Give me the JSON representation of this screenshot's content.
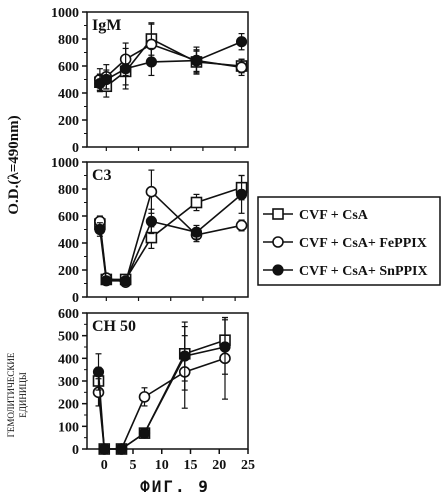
{
  "y_axis_label": "O.D.(λ=490nm)",
  "secondary_y_label_line1": "ГЕМОЛИТИЧЕСКИЕ",
  "secondary_y_label_line2": "ЕДИНИЦЫ",
  "caption": "ФИГ. 9",
  "legend": [
    {
      "label": "CVF + CsA",
      "marker": "open-square"
    },
    {
      "label": "CVF + CsA+ FePPIX",
      "marker": "open-circle"
    },
    {
      "label": "CVF + CsA+ SnPPIX",
      "marker": "filled-circle"
    }
  ],
  "chart_data": [
    {
      "type": "line",
      "title": "IgM",
      "ylim": [
        0,
        1000
      ],
      "yticks": [
        0,
        200,
        400,
        600,
        800,
        1000
      ],
      "xlim": [
        -3,
        22
      ],
      "series": [
        {
          "name": "CVF + CsA",
          "marker": "open-square",
          "x": [
            -1,
            0,
            3,
            7,
            14,
            21
          ],
          "y": [
            480,
            450,
            560,
            800,
            630,
            600
          ],
          "err": [
            60,
            80,
            100,
            120,
            80,
            50
          ]
        },
        {
          "name": "CVF + CsA+ FePPIX",
          "marker": "open-circle",
          "x": [
            -1,
            0,
            3,
            7,
            14,
            21
          ],
          "y": [
            500,
            520,
            650,
            760,
            640,
            590
          ],
          "err": [
            80,
            90,
            120,
            150,
            100,
            60
          ]
        },
        {
          "name": "CVF + CsA+ SnPPIX",
          "marker": "filled-circle",
          "x": [
            -1,
            0,
            3,
            7,
            14,
            21
          ],
          "y": [
            470,
            500,
            580,
            630,
            640,
            780
          ],
          "err": [
            60,
            70,
            150,
            100,
            80,
            60
          ]
        }
      ]
    },
    {
      "type": "line",
      "title": "C3",
      "ylim": [
        0,
        1000
      ],
      "yticks": [
        0,
        200,
        400,
        600,
        800,
        1000
      ],
      "xlim": [
        -3,
        22
      ],
      "series": [
        {
          "name": "CVF + CsA",
          "marker": "open-square",
          "x": [
            -1,
            0,
            3,
            7,
            14,
            21
          ],
          "y": [
            540,
            130,
            130,
            440,
            700,
            810
          ],
          "err": [
            40,
            30,
            30,
            80,
            60,
            90
          ]
        },
        {
          "name": "CVF + CsA+ FePPIX",
          "marker": "open-circle",
          "x": [
            -1,
            0,
            3,
            7,
            14,
            21
          ],
          "y": [
            560,
            140,
            110,
            780,
            460,
            530
          ],
          "err": [
            40,
            30,
            30,
            160,
            50,
            40
          ]
        },
        {
          "name": "CVF + CsA+ SnPPIX",
          "marker": "filled-circle",
          "x": [
            -1,
            0,
            3,
            7,
            14,
            21
          ],
          "y": [
            500,
            120,
            120,
            560,
            480,
            760
          ],
          "err": [
            50,
            30,
            30,
            90,
            50,
            140
          ]
        }
      ]
    },
    {
      "type": "line",
      "title": "CH 50",
      "ylim": [
        0,
        600
      ],
      "yticks": [
        0,
        100,
        200,
        300,
        400,
        500,
        600
      ],
      "xlim": [
        -3,
        25
      ],
      "xticks": [
        0,
        5,
        10,
        15,
        20,
        25
      ],
      "series": [
        {
          "name": "CVF + CsA",
          "marker": "open-square",
          "x": [
            -1,
            0,
            3,
            7,
            14,
            21
          ],
          "y": [
            300,
            0,
            0,
            70,
            420,
            480
          ],
          "err": [
            60,
            0,
            0,
            20,
            120,
            100
          ]
        },
        {
          "name": "CVF + CsA+ FePPIX",
          "marker": "open-circle",
          "x": [
            -1,
            0,
            3,
            7,
            14,
            21
          ],
          "y": [
            250,
            0,
            0,
            230,
            340,
            400
          ],
          "err": [
            60,
            0,
            0,
            40,
            160,
            180
          ]
        },
        {
          "name": "CVF + CsA+ SnPPIX",
          "marker": "filled-circle",
          "x": [
            -1,
            0,
            3,
            7,
            14,
            21
          ],
          "y": [
            340,
            0,
            0,
            70,
            410,
            450
          ],
          "err": [
            80,
            0,
            0,
            20,
            150,
            120
          ]
        }
      ]
    }
  ]
}
